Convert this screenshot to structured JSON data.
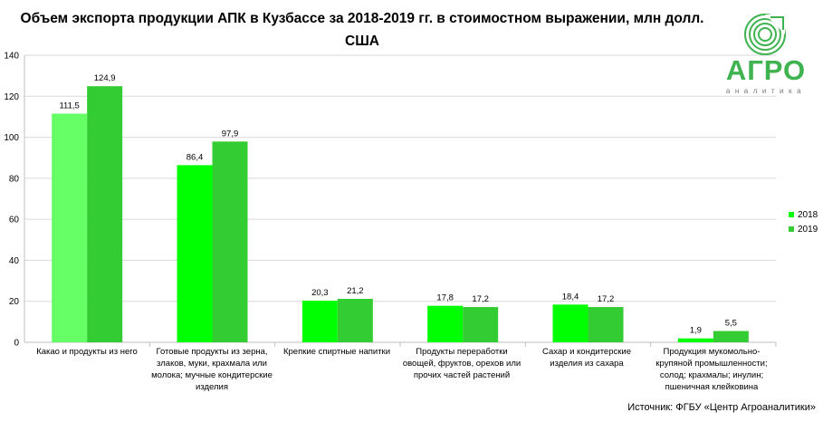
{
  "chart_data": {
    "type": "bar",
    "title": "Объем экспорта продукции АПК в Кузбассе за 2018-2019 гг. в стоимостном выражении, млн долл. США",
    "categories": [
      "Какао и продукты из него",
      "Готовые продукты из зерна, злаков, муки, крахмала или молока; мучные кондитерские изделия",
      "Крепкие спиртные напитки",
      "Продукты переработки овощей, фруктов, орехов или прочих частей растений",
      "Сахар и кондитерские изделия из сахара",
      "Продукция мукомольно-крупяной промышленности; солод; крахмалы; инулин; пшеничная клейковина"
    ],
    "series": [
      {
        "name": "2018",
        "values": [
          111.5,
          86.4,
          20.3,
          17.8,
          18.4,
          1.9
        ],
        "labels": [
          "111,5",
          "86,4",
          "20,3",
          "17,8",
          "18,4",
          "1,9"
        ],
        "color": "#00ff00"
      },
      {
        "name": "2019",
        "values": [
          124.9,
          97.9,
          21.2,
          17.2,
          17.2,
          5.5
        ],
        "labels": [
          "124,9",
          "97,9",
          "21,2",
          "17,2",
          "17,2",
          "5,5"
        ],
        "color": "#33cc33"
      }
    ],
    "first_bar_color": "#66ff66",
    "ylim": [
      0,
      140
    ],
    "yticks": [
      0,
      20,
      40,
      60,
      80,
      100,
      120,
      140
    ],
    "grid": true,
    "legend_position": "right"
  },
  "source": "Источник: ФГБУ «Центр Агроаналитики»",
  "logo": {
    "word": "АГРО",
    "sub": "аналитика",
    "color": "#3fb34f"
  }
}
